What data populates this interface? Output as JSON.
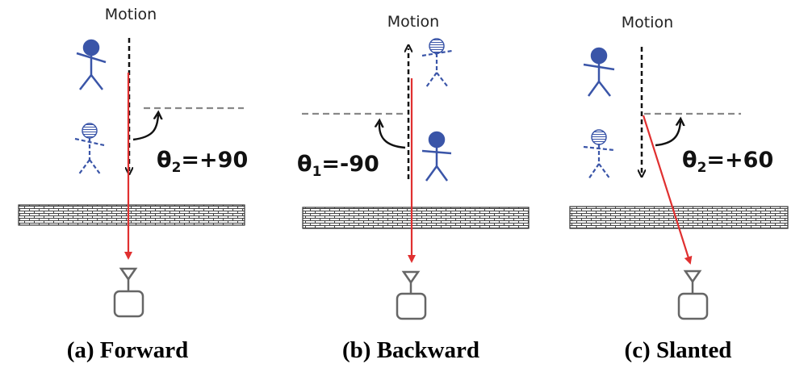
{
  "panels": [
    {
      "id": "forward",
      "motion_label": "Motion",
      "angle": {
        "symbol": "θ",
        "subscript": "2",
        "value": "=+90"
      },
      "caption": "(a) Forward"
    },
    {
      "id": "backward",
      "motion_label": "Motion",
      "angle": {
        "symbol": "θ",
        "subscript": "1",
        "value": "=-90"
      },
      "caption": "(b) Backward"
    },
    {
      "id": "slanted",
      "motion_label": "Motion",
      "angle": {
        "symbol": "θ",
        "subscript": "2",
        "value": "=+60"
      },
      "caption": "(c) Slanted"
    }
  ],
  "colors": {
    "person": "#3a55a8",
    "signal": "#e03030",
    "motion_arrow": "#111111",
    "reference_line": "#888888",
    "device": "#666666"
  },
  "icons": [
    "person-icon",
    "ghost-person-icon",
    "wall-icon",
    "antenna-icon",
    "device-icon"
  ]
}
